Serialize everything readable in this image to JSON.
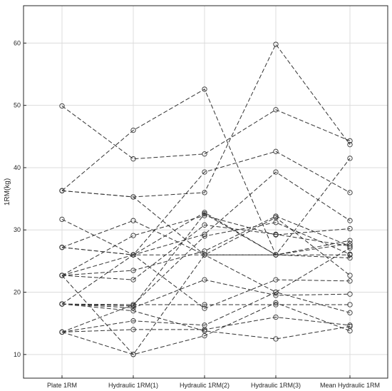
{
  "chart_data": {
    "type": "line",
    "categories": [
      "Plate 1RM",
      "Hydraulic 1RM(1)",
      "Hydraulic 1RM(2)",
      "Hydraulic 1RM(3)",
      "Mean Hydraulic 1RM"
    ],
    "ylabel": "1RM(kg)",
    "xlabel": "",
    "ylim": [
      6.2,
      66
    ],
    "yticks": [
      10,
      20,
      30,
      40,
      50,
      60
    ],
    "grid": true,
    "line_style": "dashed",
    "marker": "open-circle",
    "line_color": "#333333",
    "series": [
      {
        "values": [
          49.9,
          41.4,
          42.2,
          49.3,
          44.3
        ]
      },
      {
        "values": [
          36.3,
          46.0,
          52.6,
          26.0,
          41.5
        ]
      },
      {
        "values": [
          36.3,
          35.3,
          36.0,
          59.8,
          43.7
        ]
      },
      {
        "values": [
          31.7,
          26.0,
          39.3,
          42.6,
          36.0
        ]
      },
      {
        "values": [
          27.2,
          31.5,
          26.0,
          26.0,
          27.8
        ]
      },
      {
        "values": [
          27.2,
          26.0,
          29.3,
          39.3,
          31.5
        ]
      },
      {
        "values": [
          22.7,
          26.0,
          32.8,
          26.0,
          28.3
        ]
      },
      {
        "values": [
          22.7,
          29.1,
          32.3,
          29.2,
          30.2
        ]
      },
      {
        "values": [
          22.7,
          23.5,
          26.6,
          32.2,
          27.4
        ]
      },
      {
        "values": [
          22.7,
          22.0,
          30.8,
          29.3,
          27.4
        ]
      },
      {
        "values": [
          18.1,
          17.8,
          32.6,
          26.0,
          25.5
        ]
      },
      {
        "values": [
          18.1,
          26.0,
          26.0,
          26.0,
          26.0
        ]
      },
      {
        "values": [
          18.1,
          18.0,
          18.0,
          18.0,
          18.0
        ]
      },
      {
        "values": [
          18.1,
          17.5,
          22.0,
          19.5,
          19.7
        ]
      },
      {
        "values": [
          13.6,
          15.4,
          14.7,
          20.0,
          16.7
        ]
      },
      {
        "values": [
          13.6,
          14.0,
          14.0,
          16.0,
          14.7
        ]
      },
      {
        "values": [
          13.6,
          10.0,
          13.0,
          18.3,
          13.8
        ]
      },
      {
        "values": [
          18.1,
          17.0,
          13.8,
          12.5,
          14.5
        ]
      },
      {
        "values": [
          27.2,
          26.0,
          17.4,
          22.0,
          21.8
        ]
      },
      {
        "values": [
          22.7,
          10.0,
          26.0,
          32.0,
          22.7
        ]
      },
      {
        "values": [
          13.6,
          18.0,
          29.0,
          31.2,
          26.1
        ]
      },
      {
        "values": [
          36.3,
          35.3,
          26.0,
          20.0,
          27.1
        ]
      }
    ]
  }
}
